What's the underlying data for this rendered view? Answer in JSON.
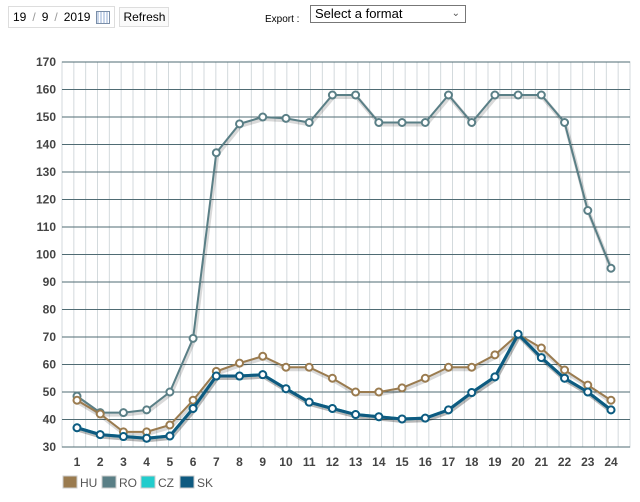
{
  "toolbar": {
    "day": "19",
    "month": "9",
    "year": "2019",
    "sep": "/",
    "refresh_label": "Refresh",
    "export_label": "Export :",
    "export_select": "Select a format"
  },
  "chart_data": {
    "type": "line",
    "x": [
      1,
      2,
      3,
      4,
      5,
      6,
      7,
      8,
      9,
      10,
      11,
      12,
      13,
      14,
      15,
      16,
      17,
      18,
      19,
      20,
      21,
      22,
      23,
      24
    ],
    "ylim": [
      30,
      170
    ],
    "yticks": [
      30,
      40,
      50,
      60,
      70,
      80,
      90,
      100,
      110,
      120,
      130,
      140,
      150,
      160,
      170
    ],
    "grid": true,
    "legend_position": "bottom-left",
    "series": [
      {
        "name": "HU",
        "color": "#9a7b4f",
        "values": [
          47,
          42,
          35.5,
          35.5,
          38,
          47,
          57.5,
          60.5,
          63,
          59,
          59,
          55,
          50,
          50,
          51.5,
          55,
          59,
          59,
          63.5,
          71,
          66,
          58,
          52.5,
          47
        ]
      },
      {
        "name": "RO",
        "color": "#5a7f86",
        "values": [
          48.5,
          42.5,
          42.5,
          43.5,
          50,
          69.5,
          137,
          147.5,
          150,
          149.5,
          148,
          158,
          158,
          148,
          148,
          148,
          158,
          148,
          158,
          158,
          158,
          148,
          116,
          95
        ]
      },
      {
        "name": "CZ",
        "color": "#22cccc",
        "values": [
          37,
          34.5,
          33.8,
          33.2,
          34,
          44,
          55.8,
          55.8,
          56.3,
          51.2,
          46.3,
          44,
          41.8,
          41,
          40.2,
          40.5,
          43.5,
          49.8,
          55.5,
          71,
          62.5,
          55,
          50,
          43.5
        ]
      },
      {
        "name": "SK",
        "color": "#0e5a80",
        "values": [
          37,
          34.5,
          33.8,
          33.2,
          34,
          44,
          55.8,
          55.8,
          56.3,
          51.2,
          46.3,
          44,
          41.8,
          41,
          40.2,
          40.5,
          43.5,
          49.8,
          55.5,
          71,
          62.5,
          55,
          50,
          43.5
        ]
      }
    ]
  }
}
